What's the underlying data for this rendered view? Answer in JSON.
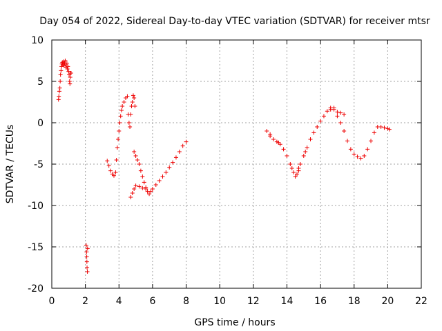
{
  "chart_data": {
    "type": "scatter",
    "title": "Day 054 of 2022, Sidereal Day-to-day VTEC variation (SDTVAR) for receiver mtsr",
    "xlabel": "GPS time / hours",
    "ylabel": "SDTVAR / TECUs",
    "xlim": [
      0,
      22
    ],
    "ylim": [
      -20,
      10
    ],
    "xticks": [
      0,
      2,
      4,
      6,
      8,
      10,
      12,
      14,
      16,
      18,
      20,
      22
    ],
    "yticks": [
      -20,
      -15,
      -10,
      -5,
      0,
      5,
      10
    ],
    "grid": true,
    "marker": "+",
    "color": "#ee0000",
    "series": [
      {
        "name": "SDTVAR",
        "points": [
          [
            0.4,
            2.8
          ],
          [
            0.42,
            3.2
          ],
          [
            0.45,
            3.8
          ],
          [
            0.48,
            4.2
          ],
          [
            0.5,
            5.0
          ],
          [
            0.52,
            5.8
          ],
          [
            0.55,
            6.3
          ],
          [
            0.58,
            6.8
          ],
          [
            0.6,
            7.1
          ],
          [
            0.63,
            7.3
          ],
          [
            0.66,
            7.0
          ],
          [
            0.7,
            7.4
          ],
          [
            0.73,
            6.9
          ],
          [
            0.76,
            7.2
          ],
          [
            0.8,
            7.5
          ],
          [
            0.83,
            7.0
          ],
          [
            0.86,
            6.7
          ],
          [
            0.9,
            7.2
          ],
          [
            0.93,
            6.5
          ],
          [
            0.96,
            6.8
          ],
          [
            1.0,
            6.2
          ],
          [
            1.03,
            5.8
          ],
          [
            1.06,
            5.0
          ],
          [
            1.08,
            4.7
          ],
          [
            1.1,
            5.5
          ],
          [
            1.12,
            6.0
          ],
          [
            1.15,
            6.0
          ],
          [
            2.05,
            -14.8
          ],
          [
            2.07,
            -15.6
          ],
          [
            2.08,
            -16.2
          ],
          [
            2.09,
            -16.8
          ],
          [
            2.1,
            -17.5
          ],
          [
            2.12,
            -18.0
          ],
          [
            2.13,
            -15.2
          ],
          [
            3.3,
            -4.6
          ],
          [
            3.4,
            -5.2
          ],
          [
            3.5,
            -5.8
          ],
          [
            3.6,
            -6.2
          ],
          [
            3.7,
            -6.4
          ],
          [
            3.8,
            -6.0
          ],
          [
            3.85,
            -4.5
          ],
          [
            3.9,
            -3.0
          ],
          [
            3.95,
            -2.0
          ],
          [
            4.0,
            -1.0
          ],
          [
            4.05,
            0.0
          ],
          [
            4.1,
            0.8
          ],
          [
            4.15,
            1.5
          ],
          [
            4.2,
            2.0
          ],
          [
            4.3,
            2.5
          ],
          [
            4.4,
            3.0
          ],
          [
            4.5,
            3.2
          ],
          [
            4.55,
            1.0
          ],
          [
            4.6,
            0.0
          ],
          [
            4.65,
            -0.5
          ],
          [
            4.7,
            1.0
          ],
          [
            4.75,
            2.0
          ],
          [
            4.8,
            2.5
          ],
          [
            4.85,
            3.3
          ],
          [
            4.9,
            3.0
          ],
          [
            4.95,
            2.0
          ],
          [
            4.9,
            -3.5
          ],
          [
            5.0,
            -4.0
          ],
          [
            5.1,
            -4.5
          ],
          [
            5.2,
            -5.0
          ],
          [
            5.3,
            -5.8
          ],
          [
            5.4,
            -6.5
          ],
          [
            5.5,
            -7.2
          ],
          [
            5.6,
            -7.8
          ],
          [
            5.7,
            -8.3
          ],
          [
            5.8,
            -8.6
          ],
          [
            5.9,
            -8.3
          ],
          [
            6.0,
            -8.0
          ],
          [
            6.2,
            -7.5
          ],
          [
            6.4,
            -7.0
          ],
          [
            6.6,
            -6.5
          ],
          [
            6.8,
            -6.0
          ],
          [
            7.0,
            -5.4
          ],
          [
            7.2,
            -4.8
          ],
          [
            7.4,
            -4.2
          ],
          [
            7.6,
            -3.5
          ],
          [
            7.8,
            -2.8
          ],
          [
            8.0,
            -2.3
          ],
          [
            4.7,
            -9.0
          ],
          [
            4.8,
            -8.5
          ],
          [
            4.9,
            -8.0
          ],
          [
            5.0,
            -7.6
          ],
          [
            5.2,
            -7.7
          ],
          [
            5.4,
            -7.9
          ],
          [
            5.6,
            -8.0
          ],
          [
            12.8,
            -1.0
          ],
          [
            13.0,
            -1.6
          ],
          [
            13.2,
            -2.0
          ],
          [
            13.4,
            -2.3
          ],
          [
            13.6,
            -2.6
          ],
          [
            13.8,
            -3.2
          ],
          [
            14.0,
            -4.0
          ],
          [
            14.2,
            -5.0
          ],
          [
            14.4,
            -6.0
          ],
          [
            14.5,
            -6.5
          ],
          [
            14.6,
            -6.2
          ],
          [
            14.7,
            -5.8
          ],
          [
            14.8,
            -5.0
          ],
          [
            15.0,
            -4.0
          ],
          [
            15.2,
            -3.0
          ],
          [
            15.4,
            -2.0
          ],
          [
            15.6,
            -1.2
          ],
          [
            15.8,
            -0.5
          ],
          [
            16.0,
            0.2
          ],
          [
            16.2,
            0.8
          ],
          [
            16.4,
            1.4
          ],
          [
            16.6,
            1.8
          ],
          [
            16.8,
            1.6
          ],
          [
            17.0,
            0.8
          ],
          [
            17.2,
            0.0
          ],
          [
            17.4,
            -1.0
          ],
          [
            17.6,
            -2.2
          ],
          [
            17.8,
            -3.2
          ],
          [
            18.0,
            -3.8
          ],
          [
            18.2,
            -4.1
          ],
          [
            18.4,
            -4.3
          ],
          [
            18.6,
            -4.0
          ],
          [
            18.8,
            -3.2
          ],
          [
            19.0,
            -2.2
          ],
          [
            19.2,
            -1.2
          ],
          [
            19.4,
            -0.5
          ],
          [
            19.6,
            -0.5
          ],
          [
            19.8,
            -0.6
          ],
          [
            20.0,
            -0.7
          ],
          [
            20.1,
            -0.8
          ],
          [
            16.6,
            1.6
          ],
          [
            16.8,
            1.8
          ],
          [
            17.0,
            1.3
          ],
          [
            17.2,
            1.2
          ],
          [
            17.4,
            1.0
          ],
          [
            13.0,
            -1.4
          ],
          [
            13.5,
            -2.4
          ],
          [
            14.3,
            -5.5
          ],
          [
            14.7,
            -5.5
          ],
          [
            15.1,
            -3.5
          ]
        ]
      }
    ]
  }
}
